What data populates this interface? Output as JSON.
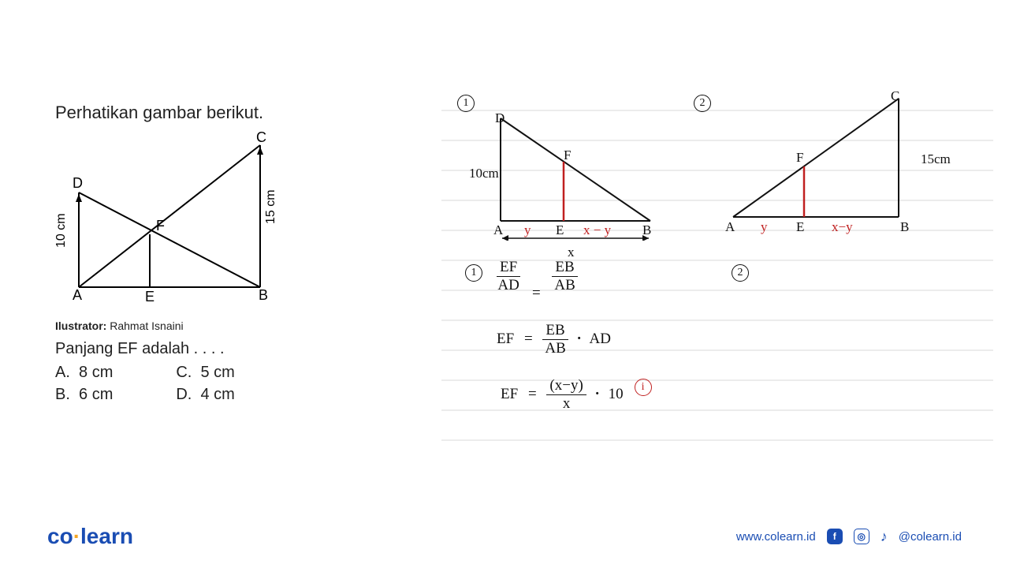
{
  "question": {
    "title": "Perhatikan gambar berikut.",
    "illustrator_label": "Ilustrator:",
    "illustrator_name": "Rahmat Isnaini",
    "prompt": "Panjang EF adalah . . . .",
    "options": {
      "A": "8 cm",
      "B": "6 cm",
      "C": "5 cm",
      "D": "4 cm"
    },
    "figure": {
      "labels": {
        "A": "A",
        "B": "B",
        "C": "C",
        "D": "D",
        "E": "E",
        "F": "F"
      },
      "left_len": "10 cm",
      "right_len": "15 cm",
      "stroke": "#000000",
      "font_size": 18
    }
  },
  "work": {
    "line_color": "#d8d8d8",
    "line_spacing": 38,
    "line_count": 12,
    "stroke": "#111111",
    "red": "#c02020",
    "fig1": {
      "marker": "1",
      "left_label": "10cm",
      "points": {
        "D": "D",
        "A": "A",
        "E": "E",
        "B": "B",
        "F": "F"
      },
      "seg_y": "y",
      "seg_xy": "x − y",
      "seg_x": "x"
    },
    "fig2": {
      "marker": "2",
      "right_label": "15cm",
      "points": {
        "C": "C",
        "A": "A",
        "E": "E",
        "B": "B",
        "F": "F"
      },
      "seg_y": "y",
      "seg_xy": "x−y"
    },
    "eq": {
      "marker1": "1",
      "marker2": "2",
      "l1_lhs_top": "EF",
      "l1_lhs_bot": "AD",
      "l1_eq": "=",
      "l1_rhs_top": "EB",
      "l1_rhs_bot": "AB",
      "l2_lhs": "EF",
      "l2_eq": "=",
      "l2_rhs_top": "EB",
      "l2_rhs_bot": "AB",
      "l2_dot": "·",
      "l2_tail": "AD",
      "l3_lhs": "EF",
      "l3_eq": "=",
      "l3_rhs_top": "(x−y)",
      "l3_rhs_bot": "x",
      "l3_dot": "·",
      "l3_tail": "10",
      "l3_badge": "i"
    }
  },
  "footer": {
    "logo_left": "co",
    "logo_right": "learn",
    "url": "www.colearn.id",
    "handle": "@colearn.id",
    "brand_color": "#1a4db3",
    "accent_color": "#f5a623"
  }
}
